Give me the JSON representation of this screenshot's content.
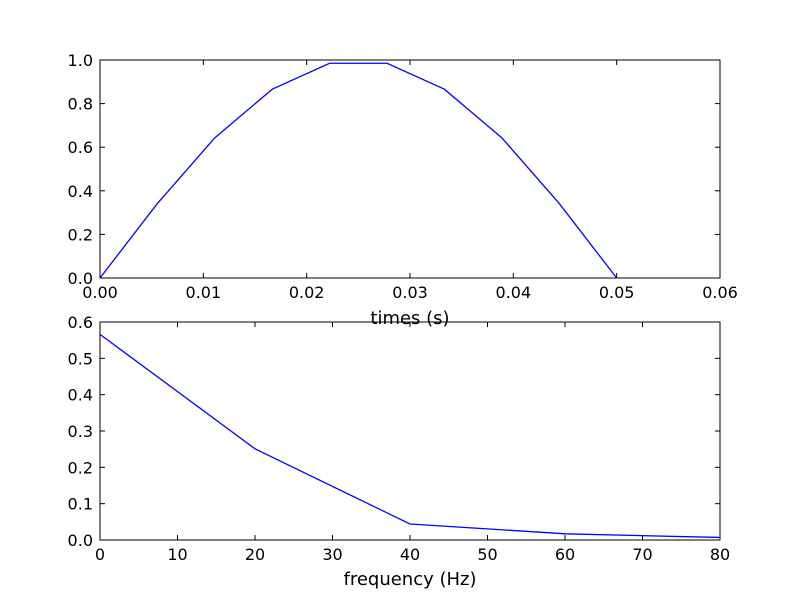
{
  "colors": {
    "line": "#0000ff",
    "axes": "#000000",
    "background": "#ffffff"
  },
  "chart_data": [
    {
      "type": "line",
      "title": "",
      "xlabel": "times (s)",
      "ylabel": "",
      "xlim": [
        0,
        0.06
      ],
      "ylim": [
        0,
        1.0
      ],
      "xticks": [
        0,
        0.01,
        0.02,
        0.03,
        0.04,
        0.05,
        0.06
      ],
      "xtick_labels": [
        "0.00",
        "0.01",
        "0.02",
        "0.03",
        "0.04",
        "0.05",
        "0.06"
      ],
      "yticks": [
        0,
        0.2,
        0.4,
        0.6,
        0.8,
        1.0
      ],
      "ytick_labels": [
        "0.0",
        "0.2",
        "0.4",
        "0.6",
        "0.8",
        "1.0"
      ],
      "grid": false,
      "series": [
        {
          "x": [
            0,
            0.00556,
            0.01111,
            0.01667,
            0.02222,
            0.02778,
            0.03333,
            0.03889,
            0.04444,
            0.05
          ],
          "y": [
            0,
            0.342,
            0.643,
            0.866,
            0.985,
            0.985,
            0.866,
            0.643,
            0.342,
            0
          ]
        }
      ]
    },
    {
      "type": "line",
      "title": "",
      "xlabel": "frequency (Hz)",
      "ylabel": "",
      "xlim": [
        0,
        80
      ],
      "ylim": [
        0,
        0.6
      ],
      "xticks": [
        0,
        10,
        20,
        30,
        40,
        50,
        60,
        70,
        80
      ],
      "xtick_labels": [
        "0",
        "10",
        "20",
        "30",
        "40",
        "50",
        "60",
        "70",
        "80"
      ],
      "yticks": [
        0,
        0.1,
        0.2,
        0.3,
        0.4,
        0.5,
        0.6
      ],
      "ytick_labels": [
        "0.0",
        "0.1",
        "0.2",
        "0.3",
        "0.4",
        "0.5",
        "0.6"
      ],
      "grid": false,
      "series": [
        {
          "x": [
            0,
            20,
            40,
            60,
            80
          ],
          "y": [
            0.566,
            0.251,
            0.044,
            0.017,
            0.007
          ]
        }
      ]
    }
  ]
}
